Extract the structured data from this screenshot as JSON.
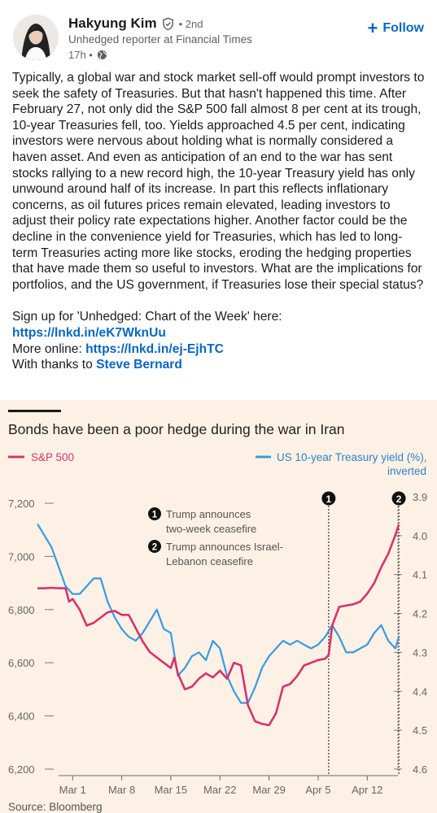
{
  "author": {
    "name": "Hakyung Kim",
    "degree": "• 2nd",
    "headline": "Unhedged reporter at Financial Times",
    "time": "17h •",
    "verified_icon": "verified-shield-icon",
    "visibility_icon": "globe-icon"
  },
  "follow_label": "Follow",
  "post": {
    "body": "Typically, a global war and stock market sell-off would prompt investors to seek the safety of Treasuries. But that hasn't happened this time. After February 27,  not only did the S&P 500 fall almost 8 per cent at its trough, 10-year Treasuries fell, too. Yields approached 4.5 per cent, indicating investors were nervous about holding what is normally considered a haven asset. And even as anticipation of an end to the war has sent stocks rallying to a new record high, the 10-year Treasury yield has only unwound around half of its increase. In part this reflects inflationary concerns, as oil futures prices remain elevated, leading investors to adjust their policy rate expectations higher. Another factor could be the decline in the convenience yield for Treasuries, which has led to long-term Treasuries acting more like stocks, eroding the hedging properties that have made them so useful to investors. What are the implications for portfolios, and the US government, if Treasuries lose their special status?",
    "signup_text": "Sign up for 'Unhedged: Chart of the Week' here: ",
    "signup_link": "https://lnkd.in/eK7WknUu",
    "more_text": "More online: ",
    "more_link": "https://lnkd.in/ej-EjhTC",
    "thanks_text": "With thanks to ",
    "thanks_link": "Steve Bernard"
  },
  "colors": {
    "link": "#0a66c2",
    "sp500": "#d6336c",
    "treasury": "#3a9ae0",
    "chart_bg": "#fdf1e5"
  },
  "chart_data": {
    "type": "line",
    "title": "Bonds have been a poor hedge during the war in Iran",
    "source": "Source: Bloomberg",
    "x_ticks": [
      "Mar 1",
      "Mar 8",
      "Mar 15",
      "Mar 22",
      "Mar 29",
      "Apr 5",
      "Apr 12"
    ],
    "left_axis": {
      "ticks": [
        "7,200",
        "7,000",
        "6,800",
        "6,600",
        "6,400",
        "6,200"
      ],
      "ylim": [
        6200,
        7200
      ]
    },
    "right_axis": {
      "ticks": [
        "3.9",
        "4.0",
        "4.1",
        "4.2",
        "4.3",
        "4.4",
        "4.5",
        "4.6"
      ],
      "ylim": [
        3.9,
        4.6
      ],
      "inverted": true
    },
    "annotations": [
      {
        "marker": "1",
        "text_line1": "Trump announces",
        "text_line2": "two-week ceasefire",
        "day": 38.5
      },
      {
        "marker": "2",
        "text_line1": "Trump announces Israel-",
        "text_line2": "Lebanon ceasefire",
        "day": 48.5
      }
    ],
    "series": [
      {
        "name": "S&P 500",
        "axis": "left",
        "x": [
          -3,
          -2,
          -1,
          0,
          0.5,
          1,
          1.5,
          2,
          3,
          4,
          5,
          6,
          7,
          8,
          9,
          10,
          11,
          12,
          13,
          14,
          15,
          16,
          16.5,
          17,
          18,
          19,
          20,
          21,
          22,
          23,
          24,
          25,
          26,
          27,
          28,
          29,
          30,
          31,
          32,
          33,
          34,
          35,
          36,
          37,
          38,
          38.5,
          39,
          40,
          41,
          42,
          43,
          44,
          45,
          46,
          47,
          48,
          48.5
        ],
        "values": [
          6880,
          6880,
          6882,
          6880,
          6880,
          6880,
          6830,
          6840,
          6800,
          6740,
          6750,
          6770,
          6790,
          6795,
          6780,
          6780,
          6730,
          6680,
          6640,
          6620,
          6600,
          6580,
          6620,
          6560,
          6500,
          6510,
          6540,
          6560,
          6545,
          6570,
          6540,
          6600,
          6590,
          6440,
          6380,
          6370,
          6365,
          6410,
          6510,
          6520,
          6550,
          6590,
          6600,
          6610,
          6615,
          6630,
          6740,
          6810,
          6815,
          6820,
          6830,
          6860,
          6900,
          6960,
          7010,
          7080,
          7120
        ]
      },
      {
        "name": "US 10-year Treasury yield (%), inverted",
        "axis": "right",
        "x": [
          -3,
          -2,
          -1,
          0,
          1,
          2,
          3,
          4,
          5,
          6,
          7,
          8,
          9,
          10,
          11,
          12,
          13,
          14,
          15,
          16,
          17,
          18,
          19,
          20,
          21,
          22,
          23,
          24,
          25,
          26,
          27,
          28,
          29,
          30,
          31,
          32,
          33,
          34,
          35,
          36,
          37,
          38,
          39,
          40,
          41,
          42,
          43,
          44,
          45,
          46,
          47,
          48,
          48.5
        ],
        "values": [
          3.97,
          4.0,
          4.03,
          4.08,
          4.13,
          4.15,
          4.15,
          4.13,
          4.11,
          4.11,
          4.17,
          4.21,
          4.24,
          4.26,
          4.27,
          4.25,
          4.22,
          4.19,
          4.24,
          4.25,
          4.36,
          4.34,
          4.31,
          4.3,
          4.32,
          4.27,
          4.29,
          4.36,
          4.4,
          4.43,
          4.43,
          4.39,
          4.34,
          4.31,
          4.29,
          4.27,
          4.28,
          4.27,
          4.28,
          4.29,
          4.28,
          4.26,
          4.23,
          4.26,
          4.3,
          4.3,
          4.29,
          4.28,
          4.25,
          4.23,
          4.27,
          4.29,
          4.26
        ]
      }
    ]
  }
}
